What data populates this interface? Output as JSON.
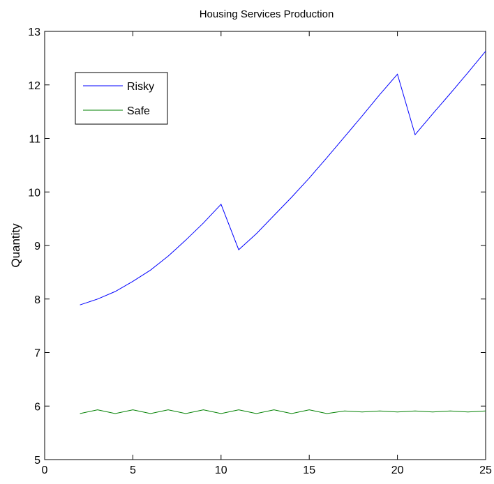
{
  "chart_data": {
    "type": "line",
    "title": "Housing Services Production",
    "xlabel": "",
    "ylabel": "Quantity",
    "xlim": [
      0,
      25
    ],
    "ylim": [
      5,
      13
    ],
    "xticks": [
      "0",
      "5",
      "10",
      "15",
      "20",
      "25"
    ],
    "yticks": [
      "5",
      "6",
      "7",
      "8",
      "9",
      "10",
      "11",
      "12",
      "13"
    ],
    "grid": false,
    "legend_position": "top-left",
    "x": [
      2,
      3,
      4,
      5,
      6,
      7,
      8,
      9,
      10,
      11,
      12,
      13,
      14,
      15,
      16,
      17,
      18,
      19,
      20,
      21,
      22,
      23,
      24,
      25
    ],
    "series": [
      {
        "name": "Risky",
        "color": "#0000ff",
        "values": [
          7.89,
          8.0,
          8.14,
          8.33,
          8.54,
          8.8,
          9.1,
          9.42,
          9.77,
          8.92,
          9.22,
          9.56,
          9.9,
          10.26,
          10.64,
          11.03,
          11.42,
          11.82,
          12.2,
          11.07,
          11.46,
          11.84,
          12.23,
          12.63
        ]
      },
      {
        "name": "Safe",
        "color": "#008000",
        "values": [
          5.86,
          5.93,
          5.86,
          5.93,
          5.86,
          5.93,
          5.86,
          5.93,
          5.86,
          5.93,
          5.86,
          5.93,
          5.86,
          5.93,
          5.86,
          5.91,
          5.89,
          5.91,
          5.89,
          5.91,
          5.89,
          5.91,
          5.89,
          5.91
        ]
      }
    ]
  }
}
